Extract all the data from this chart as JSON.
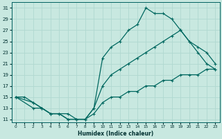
{
  "xlabel": "Humidex (Indice chaleur)",
  "ylabel": "",
  "bg_color": "#c8e8e0",
  "line_color": "#006860",
  "grid_color": "#b0d8d0",
  "xlim": [
    -0.5,
    23.5
  ],
  "ylim": [
    10.5,
    32
  ],
  "xticks": [
    0,
    1,
    2,
    3,
    4,
    5,
    6,
    7,
    8,
    9,
    10,
    11,
    12,
    13,
    14,
    15,
    16,
    17,
    18,
    19,
    20,
    21,
    22,
    23
  ],
  "yticks": [
    11,
    13,
    15,
    17,
    19,
    21,
    23,
    25,
    27,
    29,
    31
  ],
  "line1_x": [
    0,
    1,
    2,
    3,
    4,
    5,
    6,
    7,
    8,
    9,
    10,
    11,
    12,
    13,
    14,
    15,
    16,
    17,
    18,
    19,
    20,
    21,
    22,
    23
  ],
  "line1_y": [
    15,
    15,
    14,
    13,
    12,
    12,
    12,
    11,
    11,
    12,
    14,
    15,
    15,
    16,
    16,
    17,
    17,
    18,
    18,
    19,
    19,
    19,
    20,
    20
  ],
  "line2_x": [
    0,
    2,
    3,
    4,
    5,
    6,
    7,
    8,
    9,
    10,
    11,
    12,
    13,
    14,
    15,
    16,
    17,
    18,
    19,
    20,
    21,
    22,
    23
  ],
  "line2_y": [
    15,
    13,
    13,
    12,
    12,
    11,
    11,
    11,
    13,
    17,
    19,
    20,
    21,
    22,
    23,
    24,
    25,
    26,
    27,
    25,
    24,
    23,
    21
  ],
  "line3_x": [
    0,
    2,
    3,
    4,
    5,
    6,
    7,
    8,
    9,
    10,
    11,
    12,
    13,
    14,
    15,
    16,
    17,
    18,
    19,
    20,
    21,
    22,
    23
  ],
  "line3_y": [
    15,
    14,
    13,
    12,
    12,
    11,
    11,
    11,
    13,
    22,
    24,
    25,
    27,
    28,
    31,
    30,
    30,
    29,
    27,
    25,
    23,
    21,
    20
  ]
}
